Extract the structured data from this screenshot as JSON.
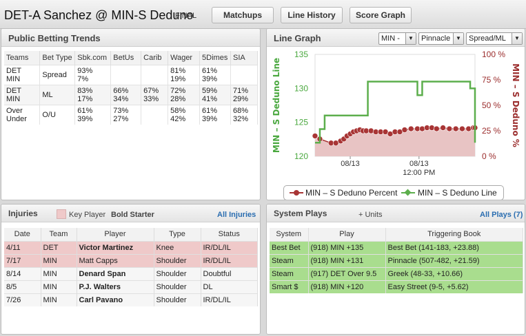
{
  "header": {
    "title": "DET-A Sanchez @ MIN-S Deduno",
    "status": "FINAL",
    "buttons": [
      "Matchups",
      "Line History",
      "Score Graph"
    ]
  },
  "trends": {
    "title": "Public Betting Trends",
    "columns": [
      "Teams",
      "Bet Type",
      "Sbk.com",
      "BetUs",
      "Carib",
      "Wager",
      "5Dimes",
      "SIA"
    ],
    "rows": [
      {
        "teams": [
          "DET",
          "MIN"
        ],
        "bet_type": "Spread",
        "sbk": [
          "93%",
          "7%"
        ],
        "betus": [
          "",
          ""
        ],
        "carib": [
          "",
          ""
        ],
        "wager": [
          "81%",
          "19%"
        ],
        "dimes": [
          "61%",
          "39%"
        ],
        "sia": [
          "",
          ""
        ]
      },
      {
        "teams": [
          "DET",
          "MIN"
        ],
        "bet_type": "ML",
        "sbk": [
          "83%",
          "17%"
        ],
        "betus": [
          "66%",
          "34%"
        ],
        "carib": [
          "67%",
          "33%"
        ],
        "wager": [
          "72%",
          "28%"
        ],
        "dimes": [
          "59%",
          "41%"
        ],
        "sia": [
          "71%",
          "29%"
        ]
      },
      {
        "teams": [
          "Over",
          "Under"
        ],
        "bet_type": "O/U",
        "sbk": [
          "61%",
          "39%"
        ],
        "betus": [
          "73%",
          "27%"
        ],
        "carib": [
          "",
          ""
        ],
        "wager": [
          "58%",
          "42%"
        ],
        "dimes": [
          "61%",
          "39%"
        ],
        "sia": [
          "68%",
          "32%"
        ]
      }
    ]
  },
  "line_graph": {
    "title": "Line Graph",
    "selects": {
      "team": "MIN -",
      "book": "Pinnacle",
      "market": "Spread/ML"
    }
  },
  "chart_data": {
    "type": "line",
    "x_ticks": [
      "08/13",
      "08/13"
    ],
    "x_tick_sub": [
      "",
      "12:00 PM"
    ],
    "left_axis": {
      "label": "MIN – S Deduno Line",
      "ticks": [
        "120",
        "125",
        "130",
        "135"
      ],
      "range": [
        120,
        135
      ],
      "color": "#4aa83f"
    },
    "right_axis": {
      "label": "MIN – S Deduno %",
      "ticks": [
        "0 %",
        "25 %",
        "50 %",
        "75 %",
        "100 %"
      ],
      "range": [
        0,
        100
      ],
      "color": "#9b2d2d"
    },
    "series": [
      {
        "name": "MIN – S Deduno Percent",
        "axis": "right",
        "type": "area",
        "color": "#a83535",
        "fill": "#e8c4c4",
        "t": [
          0,
          0.03,
          0.1,
          0.13,
          0.16,
          0.18,
          0.2,
          0.22,
          0.24,
          0.26,
          0.28,
          0.3,
          0.32,
          0.35,
          0.38,
          0.41,
          0.44,
          0.47,
          0.5,
          0.53,
          0.56,
          0.6,
          0.64,
          0.67,
          0.7,
          0.73,
          0.76,
          0.8,
          0.84,
          0.88,
          0.92,
          0.96,
          0.99,
          1.0
        ],
        "values": [
          20,
          17,
          13,
          13,
          15,
          17,
          20,
          22,
          24,
          25,
          26,
          25,
          25,
          25,
          24,
          24,
          24,
          22,
          24,
          24,
          26,
          27,
          27,
          27,
          28,
          28,
          27,
          28,
          27,
          27,
          27,
          27,
          28,
          28
        ]
      },
      {
        "name": "MIN – S Deduno Line",
        "axis": "left",
        "type": "step",
        "color": "#5cae4c",
        "t": [
          0,
          0.03,
          0.06,
          0.18,
          0.33,
          0.62,
          0.64,
          0.67,
          0.92,
          0.97,
          1.0
        ],
        "values": [
          122,
          124,
          126,
          126,
          131,
          131,
          129,
          131,
          131,
          130,
          122
        ]
      }
    ]
  },
  "injuries": {
    "title": "Injuries",
    "legend": {
      "key_label": "Key Player",
      "bold_label": "Bold Starter"
    },
    "all_link": "All Injuries",
    "columns": [
      "Date",
      "Team",
      "Player",
      "Type",
      "Status"
    ],
    "rows": [
      {
        "date": "4/11",
        "team": "DET",
        "player": "Victor Martinez",
        "type": "Knee",
        "status": "IR/DL/IL",
        "key": true,
        "bold": true
      },
      {
        "date": "7/17",
        "team": "MIN",
        "player": "Matt Capps",
        "type": "Shoulder",
        "status": "IR/DL/IL",
        "key": true,
        "bold": false
      },
      {
        "date": "8/14",
        "team": "MIN",
        "player": "Denard Span",
        "type": "Shoulder",
        "status": "Doubtful",
        "key": false,
        "bold": true
      },
      {
        "date": "8/5",
        "team": "MIN",
        "player": "P.J. Walters",
        "type": "Shoulder",
        "status": "DL",
        "key": false,
        "bold": true
      },
      {
        "date": "7/26",
        "team": "MIN",
        "player": "Carl Pavano",
        "type": "Shoulder",
        "status": "IR/DL/IL",
        "key": false,
        "bold": true
      }
    ]
  },
  "system_plays": {
    "title": "System Plays",
    "units_label": "+ Units",
    "all_link": "All Plays (7)",
    "columns": [
      "System",
      "Play",
      "Triggering Book"
    ],
    "rows": [
      {
        "system": "Best Bet",
        "play": "(918) MIN +135",
        "book": "Best Bet (141-183, +23.88)"
      },
      {
        "system": "Steam",
        "play": "(918) MIN +131",
        "book": "Pinnacle (507-482, +21.59)"
      },
      {
        "system": "Steam",
        "play": "(917) DET Over 9.5",
        "book": "Greek (48-33, +10.66)"
      },
      {
        "system": "Smart $",
        "play": "(918) MIN +120",
        "book": "Easy Street (9-5, +5.62)"
      }
    ]
  }
}
